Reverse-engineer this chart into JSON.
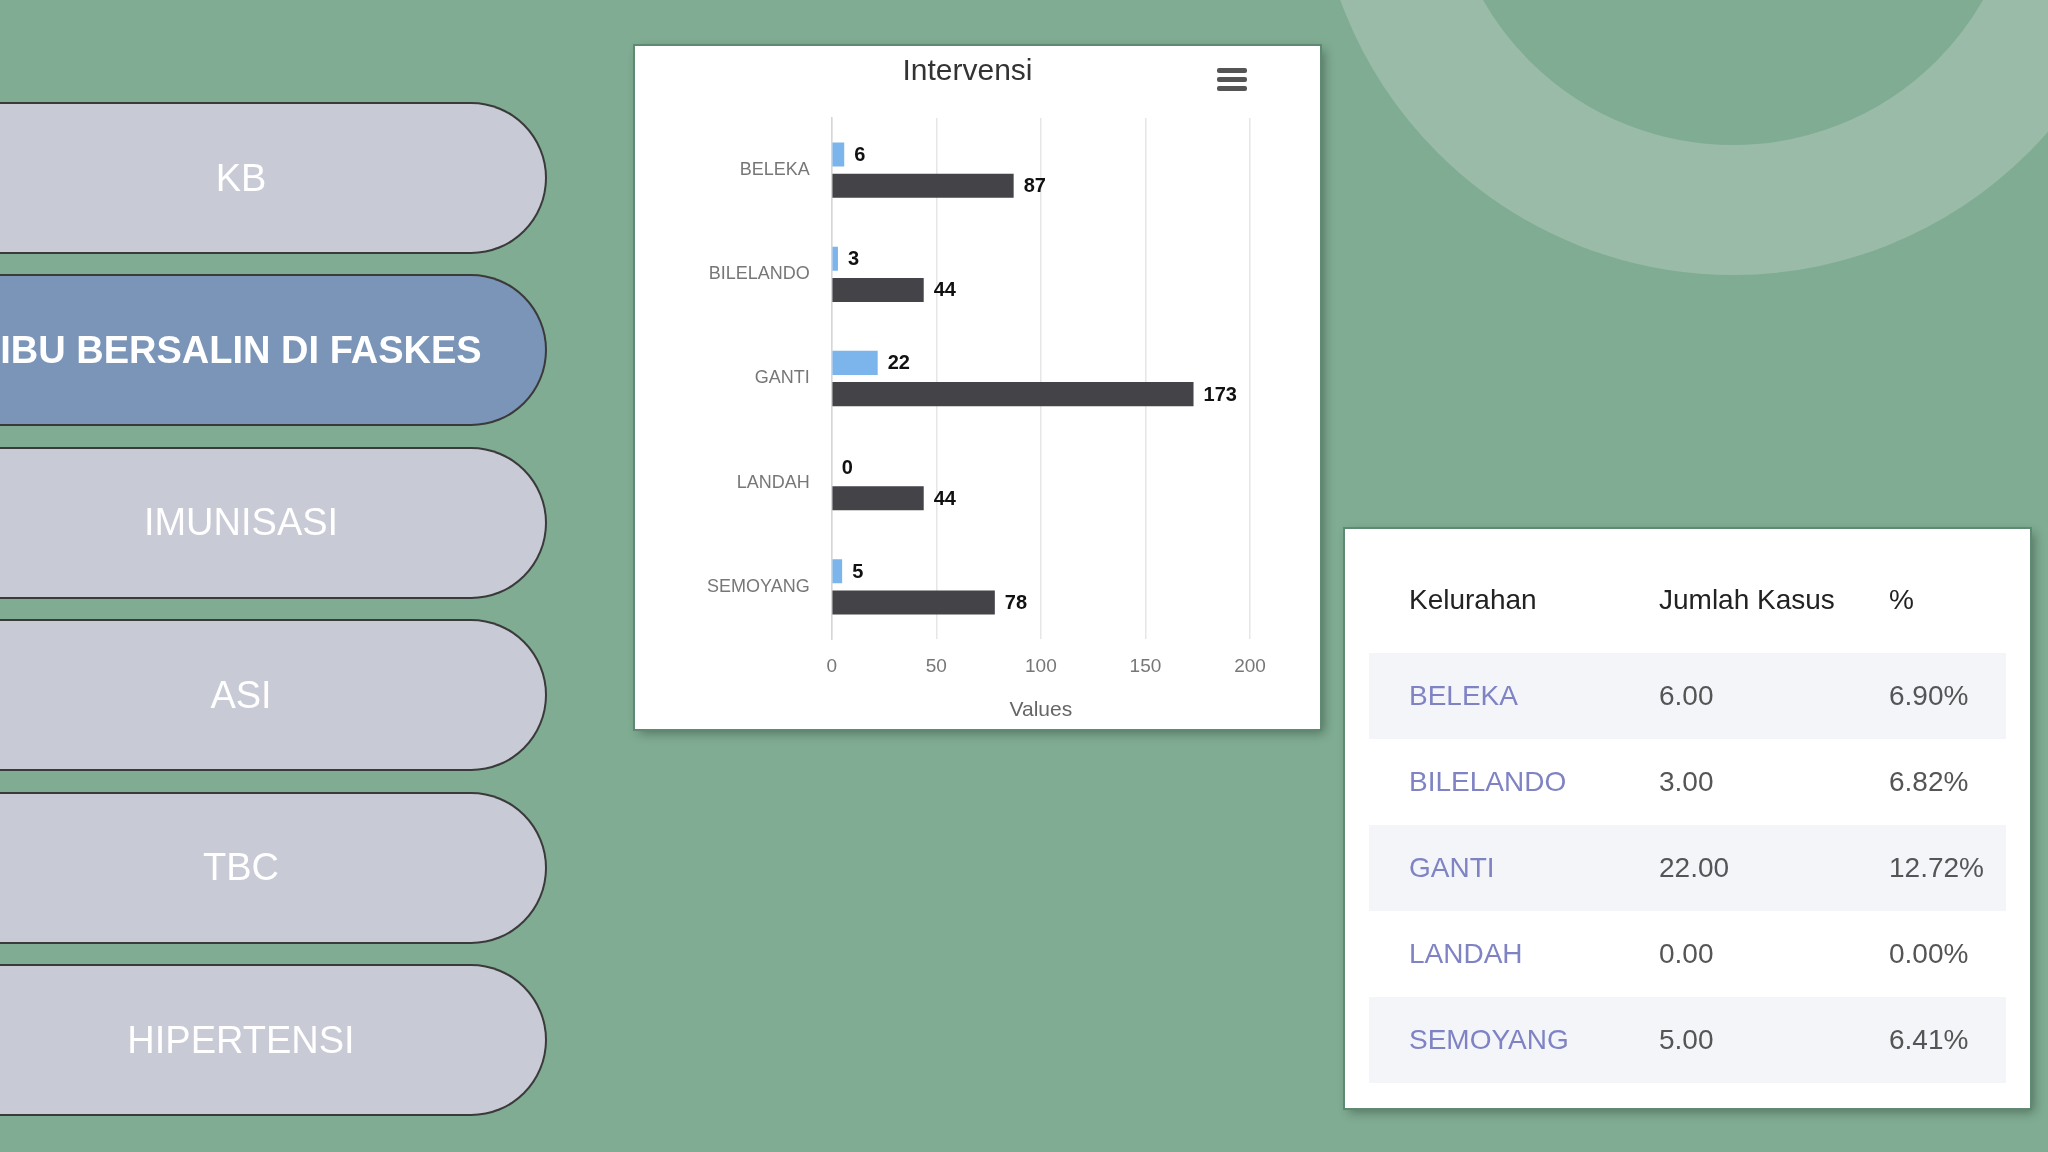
{
  "chart_data": [
    {
      "type": "other",
      "categories": [
        "KB",
        "IBU BERSALIN DI FASKES",
        "IMUNISASI",
        "ASI",
        "TBC",
        "HIPERTENSI"
      ],
      "colors": [
        "#c8cad5",
        "#7b95b8",
        "#c8cad5",
        "#c8cad5",
        "#c8cad5",
        "#c8cad5"
      ]
    },
    {
      "type": "bar",
      "title": "Intervensi",
      "orientation": "horizontal",
      "categories": [
        "BELEKA",
        "BILELANDO",
        "GANTI",
        "LANDAH",
        "SEMOYANG"
      ],
      "series": [
        {
          "color": "#7cb5ec",
          "values": [
            6,
            3,
            22,
            0,
            5
          ]
        },
        {
          "color": "#434348",
          "values": [
            87,
            44,
            173,
            44,
            78
          ]
        }
      ],
      "xlabel": "Values",
      "xlim": [
        0,
        200
      ],
      "xticks": [
        0,
        50,
        100,
        150,
        200
      ],
      "grid": "x",
      "data_labels": true
    },
    {
      "type": "other",
      "annotations": [
        "Kelurahan",
        "Jumlah Kasus",
        "%",
        "BELEKA",
        "6.00",
        "6.90%",
        "BILELANDO",
        "3.00",
        "6.82%",
        "GANTI",
        "22.00",
        "12.72%",
        "LANDAH",
        "0.00",
        "0.00%",
        "SEMOYANG",
        "5.00",
        "6.41%"
      ]
    }
  ]
}
